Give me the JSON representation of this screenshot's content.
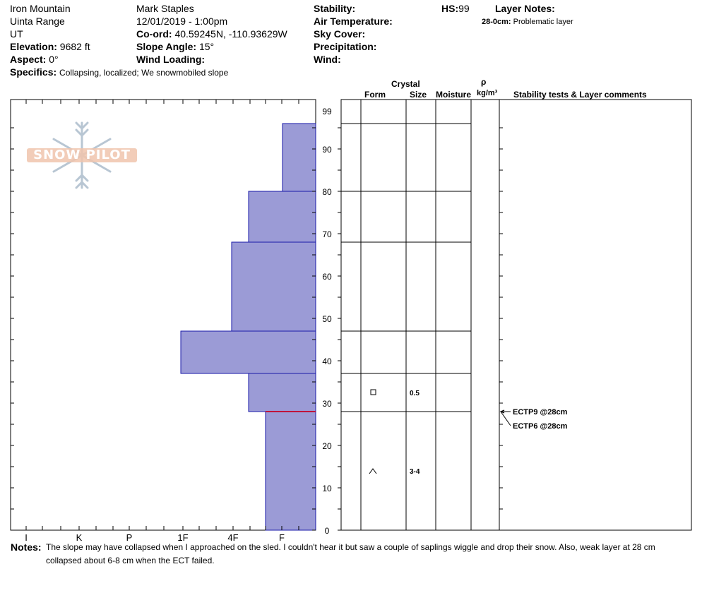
{
  "header": {
    "location": "Iron Mountain",
    "range": "Uinta Range",
    "state": "UT",
    "elevation_label": "Elevation:",
    "elevation_value": "9682 ft",
    "aspect_label": "Aspect:",
    "aspect_value": "0°",
    "specifics_label": "Specifics:",
    "specifics_value": "Collapsing, localized;  We snowmobiled slope",
    "observer": "Mark Staples",
    "datetime": "12/01/2019 - 1:00pm",
    "coord_label": "Co-ord:",
    "coord_value": "40.59245N, -110.93629W",
    "slope_label": "Slope Angle:",
    "slope_value": "15°",
    "wind_loading_label": "Wind Loading:",
    "stability_label": "Stability:",
    "air_temp_label": "Air Temperature:",
    "sky_cover_label": "Sky Cover:",
    "precip_label": "Precipitation:",
    "wind_label": "Wind:",
    "hs_label": "HS:",
    "hs_value": "99",
    "layer_notes_label": "Layer Notes:",
    "layer_note_depth": "28-0cm:",
    "layer_note_text": "Problematic layer"
  },
  "logo_text": "SNOW PILOT",
  "columns": {
    "crystal": "Crystal",
    "form": "Form",
    "size": "Size",
    "moisture": "Moisture",
    "rho": "ρ",
    "density_unit": "kg/m³",
    "stability_comments": "Stability tests & Layer comments"
  },
  "chart_data": {
    "type": "bar",
    "orientation": "horizontal",
    "title": "",
    "xlabel": "",
    "ylabel": "",
    "ylim": [
      0,
      99
    ],
    "y_ticks": [
      0,
      10,
      20,
      30,
      40,
      50,
      60,
      70,
      80,
      90,
      99
    ],
    "x_categories": [
      "I",
      "K",
      "P",
      "1F",
      "4F",
      "F"
    ],
    "layers": [
      {
        "bottom": 0,
        "top": 28,
        "hardness": "F+"
      },
      {
        "bottom": 28,
        "top": 37,
        "hardness": "4F-"
      },
      {
        "bottom": 37,
        "top": 47,
        "hardness": "1F-"
      },
      {
        "bottom": 47,
        "top": 68,
        "hardness": "4F"
      },
      {
        "bottom": 68,
        "top": 80,
        "hardness": "4F-"
      },
      {
        "bottom": 80,
        "top": 96,
        "hardness": "F-"
      }
    ],
    "layer_boundaries": [
      28,
      37,
      47,
      68,
      80,
      96
    ],
    "problem_layer_depth": 28,
    "crystals": [
      {
        "depth": 32.5,
        "form": "faceted",
        "size": "0.5"
      },
      {
        "depth": 14,
        "form": "depth-hoar",
        "size": "3-4"
      }
    ],
    "stability_tests": [
      {
        "depth": 28,
        "label": "ECTP9 @28cm"
      },
      {
        "depth": 28,
        "label": "ECTP6 @28cm"
      }
    ],
    "colors": {
      "bar_fill": "#9b9bd6",
      "bar_stroke": "#1a1aa8",
      "problem_line": "#c0143c"
    }
  },
  "notes": {
    "label": "Notes:",
    "text": "The slope may have collapsed when I approached on the sled. I couldn't hear it but saw a couple of saplings wiggle and drop their snow. Also, weak layer at 28 cm collapsed about 6-8 cm when the ECT failed."
  }
}
